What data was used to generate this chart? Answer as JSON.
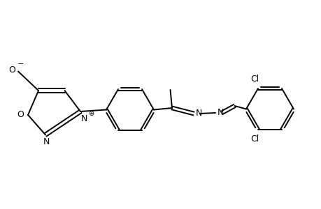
{
  "background_color": "#ffffff",
  "line_color": "#000000",
  "line_width": 1.4,
  "figsize": [
    4.6,
    3.0
  ],
  "dpi": 100,
  "xlim": [
    0.0,
    9.2
  ],
  "ylim": [
    1.8,
    5.5
  ]
}
